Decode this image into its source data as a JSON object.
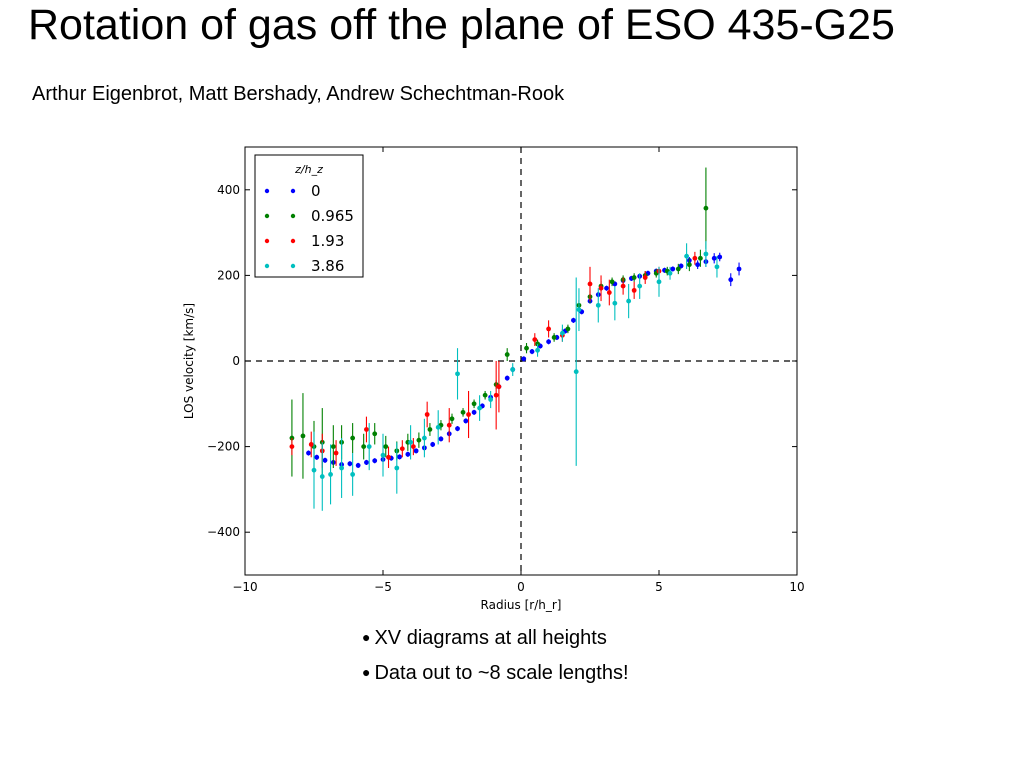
{
  "slide": {
    "title": "Rotation of gas off the plane of ESO 435-G25",
    "authors": "Arthur Eigenbrot, Matt Bershady,  Andrew Schechtman-Rook",
    "bullets": [
      "XV diagrams at all heights",
      "Data out to ~8 scale lengths!"
    ]
  },
  "chart_data": {
    "type": "scatter",
    "xlabel": "Radius [r/h_r]",
    "ylabel": "LOS velocity [km/s]",
    "xlim": [
      -10,
      10
    ],
    "ylim": [
      -500,
      500
    ],
    "xticks": [
      -10,
      -5,
      0,
      5,
      10
    ],
    "yticks": [
      -400,
      -200,
      0,
      200,
      400
    ],
    "xtick_labels": [
      "−10",
      "−5",
      "0",
      "5",
      "10"
    ],
    "ytick_labels": [
      "−400",
      "−200",
      "0",
      "200",
      "400"
    ],
    "grid": false,
    "reference_lines": {
      "x": 0,
      "y": 0,
      "style": "dashed"
    },
    "legend": {
      "title": "z/h_z",
      "placement": "top-left"
    },
    "series": [
      {
        "name": "0",
        "color": "#0000ff",
        "points": [
          [
            -7.7,
            -215,
            6
          ],
          [
            -7.4,
            -225,
            6
          ],
          [
            -7.1,
            -232,
            6
          ],
          [
            -6.8,
            -237,
            6
          ],
          [
            -6.5,
            -242,
            6
          ],
          [
            -6.2,
            -240,
            6
          ],
          [
            -5.9,
            -244,
            6
          ],
          [
            -5.6,
            -237,
            6
          ],
          [
            -5.3,
            -233,
            6
          ],
          [
            -5.0,
            -230,
            6
          ],
          [
            -4.7,
            -227,
            6
          ],
          [
            -4.4,
            -224,
            6
          ],
          [
            -4.1,
            -218,
            6
          ],
          [
            -3.8,
            -210,
            6
          ],
          [
            -3.5,
            -203,
            6
          ],
          [
            -3.2,
            -195,
            6
          ],
          [
            -2.9,
            -182,
            6
          ],
          [
            -2.6,
            -170,
            6
          ],
          [
            -2.3,
            -158,
            6
          ],
          [
            -2.0,
            -140,
            6
          ],
          [
            -1.7,
            -120,
            6
          ],
          [
            -1.4,
            -105,
            6
          ],
          [
            -1.1,
            -85,
            6
          ],
          [
            -0.8,
            -60,
            6
          ],
          [
            -0.5,
            -40,
            6
          ],
          [
            -0.3,
            -20,
            6
          ],
          [
            0.1,
            5,
            6
          ],
          [
            0.4,
            22,
            6
          ],
          [
            0.7,
            35,
            6
          ],
          [
            1.0,
            45,
            6
          ],
          [
            1.3,
            55,
            6
          ],
          [
            1.6,
            70,
            6
          ],
          [
            1.9,
            95,
            6
          ],
          [
            2.2,
            115,
            6
          ],
          [
            2.5,
            140,
            6
          ],
          [
            2.8,
            155,
            6
          ],
          [
            3.1,
            170,
            6
          ],
          [
            3.4,
            180,
            6
          ],
          [
            3.7,
            188,
            6
          ],
          [
            4.0,
            193,
            6
          ],
          [
            4.3,
            198,
            6
          ],
          [
            4.6,
            205,
            6
          ],
          [
            4.9,
            210,
            6
          ],
          [
            5.2,
            212,
            6
          ],
          [
            5.5,
            215,
            6
          ],
          [
            5.8,
            222,
            6
          ],
          [
            6.1,
            235,
            8
          ],
          [
            6.4,
            225,
            10
          ],
          [
            6.7,
            232,
            12
          ],
          [
            7.0,
            240,
            12
          ],
          [
            7.2,
            243,
            10
          ],
          [
            7.6,
            190,
            15
          ],
          [
            7.9,
            215,
            15
          ]
        ]
      },
      {
        "name": "0.965",
        "color": "#008000",
        "points": [
          [
            -8.3,
            -180,
            90
          ],
          [
            -7.9,
            -175,
            100
          ],
          [
            -7.5,
            -200,
            60
          ],
          [
            -7.2,
            -190,
            80
          ],
          [
            -6.8,
            -200,
            50
          ],
          [
            -6.5,
            -190,
            40
          ],
          [
            -6.1,
            -180,
            35
          ],
          [
            -5.7,
            -200,
            30
          ],
          [
            -5.3,
            -170,
            25
          ],
          [
            -4.9,
            -200,
            25
          ],
          [
            -4.5,
            -210,
            22
          ],
          [
            -4.1,
            -190,
            20
          ],
          [
            -3.7,
            -185,
            18
          ],
          [
            -3.3,
            -160,
            15
          ],
          [
            -2.9,
            -150,
            12
          ],
          [
            -2.5,
            -135,
            12
          ],
          [
            -2.1,
            -120,
            10
          ],
          [
            -1.7,
            -100,
            10
          ],
          [
            -1.3,
            -80,
            10
          ],
          [
            -0.9,
            -55,
            10
          ],
          [
            -0.5,
            15,
            15
          ],
          [
            0.2,
            30,
            12
          ],
          [
            0.6,
            40,
            10
          ],
          [
            1.2,
            55,
            10
          ],
          [
            1.7,
            75,
            10
          ],
          [
            2.1,
            130,
            12
          ],
          [
            2.5,
            150,
            15
          ],
          [
            2.9,
            175,
            12
          ],
          [
            3.3,
            185,
            10
          ],
          [
            3.7,
            190,
            10
          ],
          [
            4.1,
            195,
            10
          ],
          [
            4.5,
            200,
            10
          ],
          [
            4.9,
            205,
            10
          ],
          [
            5.3,
            210,
            10
          ],
          [
            5.7,
            215,
            12
          ],
          [
            6.1,
            225,
            15
          ],
          [
            6.5,
            240,
            20
          ],
          [
            6.7,
            357,
            95
          ]
        ]
      },
      {
        "name": "1.93",
        "color": "#ff0000",
        "points": [
          [
            -8.3,
            -200,
            20
          ],
          [
            -7.6,
            -195,
            30
          ],
          [
            -7.2,
            -210,
            40
          ],
          [
            -6.7,
            -215,
            30
          ],
          [
            -5.6,
            -160,
            30
          ],
          [
            -4.8,
            -225,
            25
          ],
          [
            -4.3,
            -205,
            20
          ],
          [
            -3.9,
            -200,
            20
          ],
          [
            -3.4,
            -125,
            30
          ],
          [
            -2.6,
            -150,
            40
          ],
          [
            -1.9,
            -125,
            55
          ],
          [
            -0.9,
            -80,
            80
          ],
          [
            -0.8,
            -60,
            60
          ],
          [
            0.5,
            50,
            15
          ],
          [
            1.0,
            75,
            20
          ],
          [
            1.5,
            60,
            15
          ],
          [
            2.5,
            180,
            40
          ],
          [
            2.9,
            170,
            30
          ],
          [
            3.2,
            160,
            30
          ],
          [
            3.7,
            175,
            20
          ],
          [
            4.1,
            165,
            20
          ],
          [
            4.5,
            195,
            15
          ],
          [
            5.0,
            210,
            10
          ],
          [
            6.3,
            240,
            15
          ]
        ]
      },
      {
        "name": "3.86",
        "color": "#00bfbf",
        "points": [
          [
            -7.5,
            -255,
            90
          ],
          [
            -7.2,
            -270,
            80
          ],
          [
            -6.9,
            -265,
            70
          ],
          [
            -6.5,
            -250,
            70
          ],
          [
            -6.1,
            -265,
            50
          ],
          [
            -5.5,
            -200,
            55
          ],
          [
            -5.0,
            -220,
            50
          ],
          [
            -4.5,
            -250,
            60
          ],
          [
            -4.0,
            -190,
            40
          ],
          [
            -3.5,
            -180,
            45
          ],
          [
            -3.0,
            -155,
            40
          ],
          [
            -2.3,
            -30,
            60
          ],
          [
            -1.5,
            -110,
            30
          ],
          [
            -1.1,
            -90,
            20
          ],
          [
            -0.3,
            -20,
            15
          ],
          [
            0.6,
            25,
            15
          ],
          [
            1.5,
            65,
            20
          ],
          [
            2.0,
            -25,
            220
          ],
          [
            2.1,
            120,
            50
          ],
          [
            2.8,
            130,
            40
          ],
          [
            3.4,
            135,
            40
          ],
          [
            3.9,
            140,
            40
          ],
          [
            4.3,
            175,
            30
          ],
          [
            5.0,
            185,
            35
          ],
          [
            5.4,
            205,
            15
          ],
          [
            6.0,
            245,
            30
          ],
          [
            6.7,
            250,
            30
          ],
          [
            7.1,
            220,
            25
          ]
        ]
      }
    ]
  }
}
